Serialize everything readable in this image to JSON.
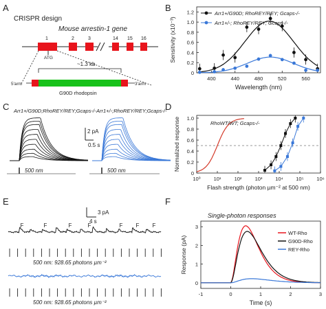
{
  "panel_labels": {
    "A": "A",
    "B": "B",
    "C": "C",
    "D": "D",
    "E": "E",
    "F": "F"
  },
  "panelA": {
    "title": "CRISPR design",
    "gene_label": "Mouse arrestin-1 gene",
    "exons": [
      "1",
      "2",
      "3",
      "14",
      "15",
      "16"
    ],
    "atg": "ATG",
    "size": "~1.3 kb",
    "left_arm": "5'arm",
    "right_arm": "3'arm",
    "insert": "G90D rhodopsin",
    "colors": {
      "exon": "#e8141c",
      "insert": "#18c21a"
    }
  },
  "panelB": {
    "ylabel": "Sensitivity (x10⁻³)",
    "xlabel": "Wavelength (nm)",
    "legend_black": "Arr1+/G90D; RhoREY/REY; Gcaps-/-",
    "legend_blue": "Arr1+/-; RhoREY/REY; Gcaps-/-",
    "yticks": [
      "0",
      "0.2",
      "0.4",
      "0.6",
      "0.8",
      "1.0",
      "1.2"
    ],
    "xticks": [
      "400",
      "440",
      "480",
      "520",
      "560"
    ],
    "chart_data": {
      "type": "scatter",
      "xlim": [
        375,
        585
      ],
      "ylim": [
        0,
        1.3
      ],
      "series": [
        {
          "name": "Arr1+/G90D; RhoREY/REY; Gcaps-/-",
          "color": "#111111",
          "x": [
            380,
            405,
            420,
            440,
            460,
            480,
            500,
            520,
            540,
            560,
            580
          ],
          "y": [
            0.08,
            0.09,
            0.35,
            0.3,
            0.9,
            0.86,
            1.07,
            0.92,
            0.4,
            0.26,
            0.08
          ]
        },
        {
          "name": "Arr1+/-; RhoREY/REY; Gcaps-/-",
          "color": "#3a78d8",
          "x": [
            380,
            405,
            420,
            440,
            460,
            480,
            500,
            520,
            540,
            560,
            580
          ],
          "y": [
            0.01,
            0.02,
            0.06,
            0.09,
            0.13,
            0.27,
            0.34,
            0.26,
            0.19,
            0.05,
            0.05
          ]
        }
      ]
    }
  },
  "panelC": {
    "label_black": "Arr1+/G90D;RhoREY/REY;Gcaps-/-",
    "label_blue": "Arr1+/-;RhoREY/REY;Gcaps-/-",
    "scale_pa": "2 pA",
    "scale_s": "0.5 s",
    "stim": "500 nm",
    "stim2": "500 nm"
  },
  "panelD": {
    "ylabel": "Normalized response",
    "xlabel": "Flash strength (photon µm⁻² at 500 nm)",
    "curve_label": "RhoWT/WT; Gcaps-/-",
    "yticks": [
      "0",
      "0.2",
      "0.4",
      "0.6",
      "0.8",
      "1.0"
    ],
    "xticks": [
      "10⁰",
      "10¹",
      "10²",
      "10³",
      "10⁴",
      "10⁵",
      "10⁶"
    ],
    "chart_data": {
      "type": "line",
      "xscale": "log",
      "xlim": [
        1,
        1000000
      ],
      "ylim": [
        0,
        1.05
      ],
      "series": [
        {
          "name": "RhoWT/WT; Gcaps-/-",
          "color": "#d43a2a",
          "x50": 10,
          "n": 1.6
        },
        {
          "name": "Arr1+/G90D; RhoREY/REY; Gcaps-/-",
          "color": "#111111",
          "x": [
            2000,
            4000,
            7000,
            12000,
            20000,
            35000,
            60000
          ],
          "y": [
            0.05,
            0.15,
            0.3,
            0.5,
            0.72,
            0.9,
            1.0
          ]
        },
        {
          "name": "Arr1+/-; RhoREY/REY; Gcaps-/-",
          "color": "#3a78d8",
          "x": [
            6000,
            12000,
            25000,
            45000,
            80000,
            150000
          ],
          "y": [
            0.04,
            0.12,
            0.3,
            0.55,
            0.85,
            1.0
          ]
        }
      ],
      "dashed_y": 0.5
    }
  },
  "panelE": {
    "f_labels": [
      "F",
      "F",
      "F",
      "F",
      "F",
      "F",
      "F"
    ],
    "scale_pa": "3 pA",
    "scale_s": "4 s",
    "caption1": "500 nm: 928.65 photons µm⁻²",
    "caption2": "500 nm: 928.65 photons µm⁻²"
  },
  "panelF": {
    "title": "Single-photon responses",
    "ylabel": "Response (pA)",
    "xlabel": "Time (s)",
    "yticks": [
      "0",
      "1",
      "2",
      "3"
    ],
    "xticks": [
      "-1",
      "0",
      "1",
      "2",
      "3"
    ],
    "legend": [
      {
        "label": "WT-Rho",
        "color": "#e8141c"
      },
      {
        "label": "G90D-Rho",
        "color": "#111111"
      },
      {
        "label": "REY-Rho",
        "color": "#3a78d8"
      }
    ],
    "chart_data": {
      "type": "line",
      "xlim": [
        -1,
        3
      ],
      "ylim": [
        -0.3,
        3.3
      ],
      "series": [
        {
          "name": "WT-Rho",
          "peak": 3.05,
          "tpeak": 0.5
        },
        {
          "name": "G90D-Rho",
          "peak": 2.75,
          "tpeak": 0.55
        },
        {
          "name": "REY-Rho",
          "peak": 0.22,
          "tpeak": 0.7
        }
      ]
    }
  }
}
